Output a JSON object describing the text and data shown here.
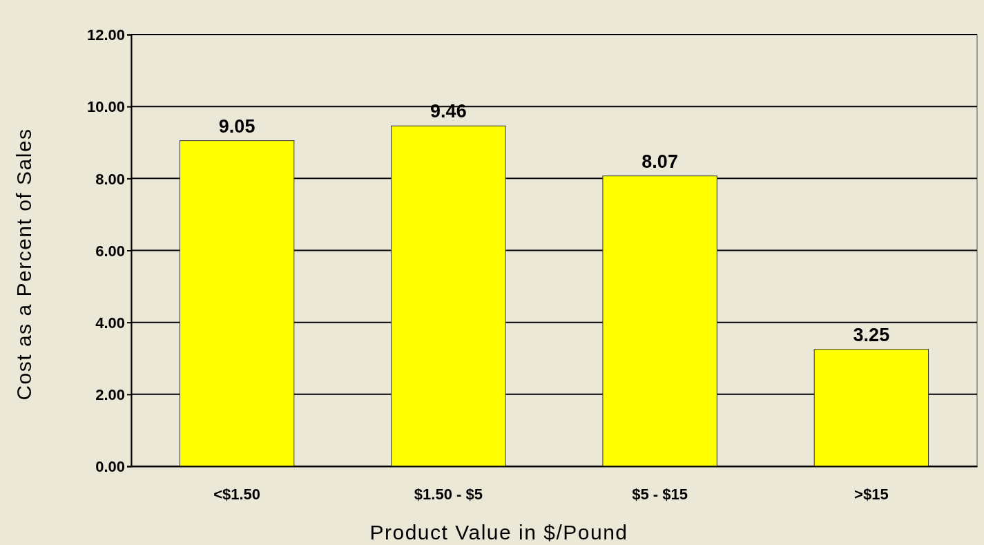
{
  "chart_data": {
    "type": "bar",
    "xlabel": "Product Value in $/Pound",
    "ylabel": "Cost as a Percent of Sales",
    "categories": [
      "<$1.50",
      "$1.50 - $5",
      "$5 - $15",
      ">$15"
    ],
    "values": [
      9.05,
      9.46,
      8.07,
      3.25
    ],
    "color": "#ffff00",
    "ylim": [
      0,
      12
    ],
    "yticks": [
      {
        "value": 0,
        "label": "0.00"
      },
      {
        "value": 2,
        "label": "2.00"
      },
      {
        "value": 4,
        "label": "4.00"
      },
      {
        "value": 6,
        "label": "6.00"
      },
      {
        "value": 8,
        "label": "8.00"
      },
      {
        "value": 10,
        "label": "10.00"
      },
      {
        "value": 12,
        "label": "12.00"
      }
    ],
    "grid": true,
    "data_labels": true
  }
}
